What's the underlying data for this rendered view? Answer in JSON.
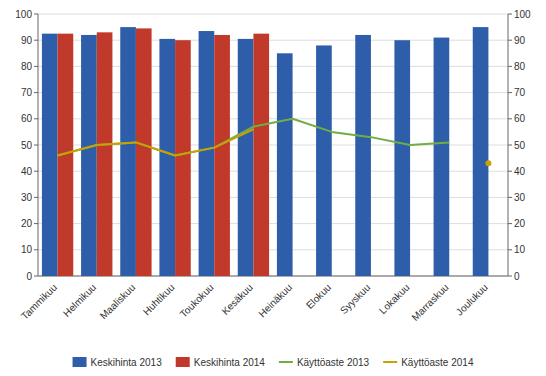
{
  "chart_data": {
    "type": "bar",
    "categories": [
      "Tammikuu",
      "Helmikuu",
      "Maaliskuu",
      "Huhtikuu",
      "Toukokuu",
      "Kesäkuu",
      "Heinäkuu",
      "Elokuu",
      "Syyskuu",
      "Lokakuu",
      "Marraskuu",
      "Joulukuu"
    ],
    "series": [
      {
        "name": "Keskihinta 2013",
        "type": "bar",
        "color": "#2E5EAA",
        "values": [
          92.5,
          92.0,
          95.0,
          90.5,
          93.5,
          90.5,
          85.0,
          88.0,
          92.0,
          90.0,
          91.0,
          95.0
        ]
      },
      {
        "name": "Keskihinta 2014",
        "type": "bar",
        "color": "#C0392B",
        "values": [
          92.5,
          93.0,
          94.5,
          90.0,
          92.0,
          92.5,
          null,
          null,
          null,
          null,
          null,
          null
        ]
      },
      {
        "name": "Käyttöaste 2013",
        "type": "line",
        "axis": "y2",
        "color": "#70AD47",
        "values": [
          46,
          50,
          51,
          46,
          49,
          57,
          60,
          55,
          53,
          50,
          51,
          null
        ]
      },
      {
        "name": "Käyttöaste 2014",
        "type": "line",
        "axis": "y2",
        "color": "#C8A200",
        "values": [
          46,
          50,
          51,
          46,
          49,
          56,
          null,
          null,
          null,
          null,
          null,
          43
        ]
      }
    ],
    "ylim": [
      0,
      100
    ],
    "yticks": [
      0,
      10,
      20,
      30,
      40,
      50,
      60,
      70,
      80,
      90,
      100
    ],
    "y2lim": [
      0,
      100
    ],
    "y2ticks": [
      0,
      10,
      20,
      30,
      40,
      50,
      60,
      70,
      80,
      90,
      100
    ],
    "grid": true,
    "legend": "bottom"
  }
}
